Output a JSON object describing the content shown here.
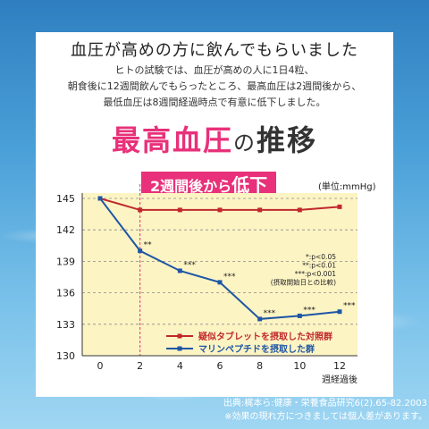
{
  "heading": "血圧が高めの方に飲んでもらいました",
  "intro": [
    "ヒトの試験では、血圧が高めの人に1日4粒、",
    "朝食後に12週間飲んでもらったところ、最高血圧は2週間後から、",
    "最低血圧は8週間経過時点で有意に低下しました。"
  ],
  "title": {
    "main": "最高血圧",
    "particle": "の",
    "tail": "推移"
  },
  "callout": {
    "prefix": "2週間後から",
    "strong": "低下"
  },
  "unit_label": "(単位:mmHg)",
  "significance_notes": [
    "*:p<0.05",
    "**:p<0.01",
    "***:p<0.001",
    "(摂取開始日との比較)"
  ],
  "source": [
    "出典:梶本ら:健康・栄養食品研究6(2).65-82.2003",
    "※効果の現れ方につきましては個人差があります。"
  ],
  "colors": {
    "accent": "#e8317a",
    "control": "#c0282d",
    "treatment": "#1f56a5",
    "plot_bg": "#fdf4c4"
  },
  "chart_data": {
    "type": "line",
    "x": [
      0,
      2,
      4,
      6,
      8,
      10,
      12
    ],
    "xlabel": "週経過後",
    "ylabel": "",
    "ylim": [
      130,
      145
    ],
    "yticks": [
      130,
      133,
      136,
      139,
      142,
      145
    ],
    "grid": true,
    "legend_position": "bottom-right",
    "series": [
      {
        "name": "疑似タブレットを摂取した対照群",
        "color": "#c0282d",
        "marker": "square",
        "values": [
          145,
          143.9,
          143.9,
          143.9,
          143.9,
          143.9,
          144.2
        ],
        "labels": [
          "",
          "",
          "",
          "",
          "",
          "",
          ""
        ]
      },
      {
        "name": "マリンペプチドを摂取した群",
        "color": "#1f56a5",
        "marker": "square",
        "values": [
          145,
          140.0,
          138.1,
          137.0,
          133.5,
          133.8,
          134.2
        ],
        "labels": [
          "",
          "**",
          "***",
          "***",
          "***",
          "***",
          "***"
        ]
      }
    ]
  }
}
